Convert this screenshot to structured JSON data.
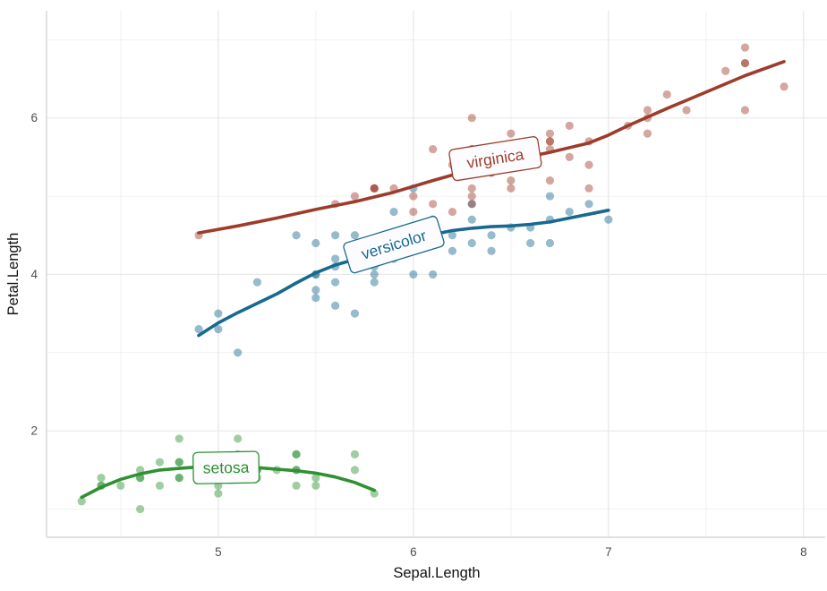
{
  "chart_data": {
    "type": "scatter",
    "title": "",
    "xlabel": "Sepal.Length",
    "ylabel": "Petal.Length",
    "x_ticks": [
      5,
      6,
      7,
      8
    ],
    "y_ticks": [
      2,
      4,
      6
    ],
    "x_minor": [
      4.5,
      5.5,
      6.5,
      7.5
    ],
    "y_minor": [
      1,
      3,
      5,
      7
    ],
    "xlim": [
      4.12,
      8.12
    ],
    "ylim": [
      0.64,
      7.37
    ],
    "grid": "on",
    "legend_position": "labels-on-curves",
    "style": {
      "grid_major_color": "#e7e7e7",
      "grid_minor_color": "#f1f1f1",
      "axis_line_color": "#d6d6d6",
      "tick_label_color": "#4d4d4d",
      "axis_title_color": "#111111",
      "label_box_fill": "#fcfcfe",
      "point_alpha": 0.45,
      "point_radius": 4.6,
      "line_width": 3.6
    },
    "series": [
      {
        "name": "setosa",
        "color": "#2e9132",
        "label": {
          "text": "setosa",
          "x": 5.04,
          "y": 1.53,
          "angle": -1
        },
        "smooth": [
          [
            4.3,
            1.15
          ],
          [
            4.4,
            1.28
          ],
          [
            4.5,
            1.38
          ],
          [
            4.6,
            1.45
          ],
          [
            4.7,
            1.5
          ],
          [
            4.8,
            1.52
          ],
          [
            4.9,
            1.54
          ],
          [
            5.0,
            1.545
          ],
          [
            5.1,
            1.54
          ],
          [
            5.2,
            1.53
          ],
          [
            5.3,
            1.51
          ],
          [
            5.4,
            1.49
          ],
          [
            5.5,
            1.46
          ],
          [
            5.6,
            1.41
          ],
          [
            5.7,
            1.34
          ],
          [
            5.8,
            1.24
          ]
        ],
        "points": [
          [
            5.1,
            1.4
          ],
          [
            4.9,
            1.4
          ],
          [
            4.7,
            1.3
          ],
          [
            4.6,
            1.5
          ],
          [
            5.0,
            1.4
          ],
          [
            5.4,
            1.7
          ],
          [
            4.6,
            1.4
          ],
          [
            5.0,
            1.5
          ],
          [
            4.4,
            1.4
          ],
          [
            4.9,
            1.5
          ],
          [
            5.4,
            1.5
          ],
          [
            4.8,
            1.6
          ],
          [
            4.8,
            1.4
          ],
          [
            4.3,
            1.1
          ],
          [
            5.8,
            1.2
          ],
          [
            5.7,
            1.5
          ],
          [
            5.4,
            1.3
          ],
          [
            5.1,
            1.4
          ],
          [
            5.7,
            1.7
          ],
          [
            5.1,
            1.5
          ],
          [
            5.4,
            1.7
          ],
          [
            5.1,
            1.5
          ],
          [
            4.6,
            1.0
          ],
          [
            5.1,
            1.7
          ],
          [
            4.8,
            1.9
          ],
          [
            5.0,
            1.6
          ],
          [
            5.0,
            1.6
          ],
          [
            5.2,
            1.5
          ],
          [
            5.2,
            1.4
          ],
          [
            4.7,
            1.6
          ],
          [
            4.8,
            1.6
          ],
          [
            5.4,
            1.5
          ],
          [
            5.2,
            1.5
          ],
          [
            5.5,
            1.4
          ],
          [
            4.9,
            1.5
          ],
          [
            5.0,
            1.2
          ],
          [
            5.5,
            1.3
          ],
          [
            4.9,
            1.4
          ],
          [
            4.4,
            1.3
          ],
          [
            5.1,
            1.5
          ],
          [
            5.0,
            1.3
          ],
          [
            4.5,
            1.3
          ],
          [
            4.4,
            1.3
          ],
          [
            5.0,
            1.6
          ],
          [
            5.1,
            1.9
          ],
          [
            4.8,
            1.4
          ],
          [
            5.1,
            1.6
          ],
          [
            4.6,
            1.4
          ],
          [
            5.3,
            1.5
          ],
          [
            5.0,
            1.4
          ]
        ]
      },
      {
        "name": "versicolor",
        "color": "#17698f",
        "label": {
          "text": "versicolor",
          "x": 5.9,
          "y": 4.38,
          "angle": -17
        },
        "smooth": [
          [
            4.9,
            3.22
          ],
          [
            5.0,
            3.38
          ],
          [
            5.1,
            3.51
          ],
          [
            5.2,
            3.63
          ],
          [
            5.3,
            3.75
          ],
          [
            5.4,
            3.89
          ],
          [
            5.5,
            4.02
          ],
          [
            5.6,
            4.12
          ],
          [
            5.7,
            4.19
          ],
          [
            5.8,
            4.26
          ],
          [
            5.9,
            4.34
          ],
          [
            6.0,
            4.43
          ],
          [
            6.1,
            4.51
          ],
          [
            6.2,
            4.56
          ],
          [
            6.3,
            4.59
          ],
          [
            6.4,
            4.61
          ],
          [
            6.5,
            4.62
          ],
          [
            6.6,
            4.64
          ],
          [
            6.7,
            4.67
          ],
          [
            6.8,
            4.72
          ],
          [
            6.9,
            4.77
          ],
          [
            7.0,
            4.82
          ]
        ],
        "points": [
          [
            7.0,
            4.7
          ],
          [
            6.4,
            4.5
          ],
          [
            6.9,
            4.9
          ],
          [
            5.5,
            4.0
          ],
          [
            6.5,
            4.6
          ],
          [
            5.7,
            4.5
          ],
          [
            6.3,
            4.7
          ],
          [
            4.9,
            3.3
          ],
          [
            6.6,
            4.6
          ],
          [
            5.2,
            3.9
          ],
          [
            5.0,
            3.5
          ],
          [
            5.9,
            4.2
          ],
          [
            6.0,
            4.0
          ],
          [
            6.1,
            4.7
          ],
          [
            5.6,
            3.6
          ],
          [
            6.7,
            4.4
          ],
          [
            5.6,
            4.5
          ],
          [
            5.8,
            4.1
          ],
          [
            6.2,
            4.5
          ],
          [
            5.6,
            3.9
          ],
          [
            5.9,
            4.8
          ],
          [
            6.1,
            4.0
          ],
          [
            6.3,
            4.9
          ],
          [
            6.1,
            4.7
          ],
          [
            6.4,
            4.3
          ],
          [
            6.6,
            4.4
          ],
          [
            6.8,
            4.8
          ],
          [
            6.7,
            5.0
          ],
          [
            6.0,
            4.5
          ],
          [
            5.7,
            3.5
          ],
          [
            5.5,
            3.8
          ],
          [
            5.5,
            3.7
          ],
          [
            5.8,
            3.9
          ],
          [
            6.0,
            5.1
          ],
          [
            5.4,
            4.5
          ],
          [
            6.0,
            4.5
          ],
          [
            6.7,
            4.7
          ],
          [
            6.3,
            4.4
          ],
          [
            5.6,
            4.1
          ],
          [
            5.5,
            4.0
          ],
          [
            5.5,
            4.4
          ],
          [
            6.1,
            4.6
          ],
          [
            5.8,
            4.0
          ],
          [
            5.0,
            3.3
          ],
          [
            5.6,
            4.2
          ],
          [
            5.7,
            4.2
          ],
          [
            5.7,
            4.2
          ],
          [
            6.2,
            4.3
          ],
          [
            5.1,
            3.0
          ],
          [
            5.7,
            4.1
          ]
        ]
      },
      {
        "name": "virginica",
        "color": "#9d3c2b",
        "label": {
          "text": "virginica",
          "x": 6.42,
          "y": 5.48,
          "angle": -9
        },
        "smooth": [
          [
            4.9,
            4.53
          ],
          [
            5.1,
            4.62
          ],
          [
            5.3,
            4.72
          ],
          [
            5.5,
            4.83
          ],
          [
            5.7,
            4.93
          ],
          [
            5.9,
            5.05
          ],
          [
            6.1,
            5.2
          ],
          [
            6.3,
            5.34
          ],
          [
            6.5,
            5.46
          ],
          [
            6.7,
            5.56
          ],
          [
            6.9,
            5.68
          ],
          [
            7.0,
            5.78
          ],
          [
            7.1,
            5.9
          ],
          [
            7.3,
            6.12
          ],
          [
            7.5,
            6.33
          ],
          [
            7.7,
            6.54
          ],
          [
            7.9,
            6.72
          ]
        ],
        "points": [
          [
            6.3,
            6.0
          ],
          [
            5.8,
            5.1
          ],
          [
            7.1,
            5.9
          ],
          [
            6.3,
            5.6
          ],
          [
            6.5,
            5.8
          ],
          [
            7.6,
            6.6
          ],
          [
            4.9,
            4.5
          ],
          [
            7.3,
            6.3
          ],
          [
            6.7,
            5.8
          ],
          [
            7.2,
            6.1
          ],
          [
            6.5,
            5.1
          ],
          [
            6.4,
            5.3
          ],
          [
            6.8,
            5.5
          ],
          [
            5.7,
            5.0
          ],
          [
            5.8,
            5.1
          ],
          [
            6.4,
            5.3
          ],
          [
            6.5,
            5.5
          ],
          [
            7.7,
            6.7
          ],
          [
            7.7,
            6.9
          ],
          [
            6.0,
            5.0
          ],
          [
            6.9,
            5.7
          ],
          [
            5.6,
            4.9
          ],
          [
            7.7,
            6.7
          ],
          [
            6.3,
            4.9
          ],
          [
            6.7,
            5.7
          ],
          [
            7.2,
            6.0
          ],
          [
            6.2,
            4.8
          ],
          [
            6.1,
            4.9
          ],
          [
            6.4,
            5.6
          ],
          [
            7.2,
            5.8
          ],
          [
            7.4,
            6.1
          ],
          [
            7.9,
            6.4
          ],
          [
            6.4,
            5.6
          ],
          [
            6.3,
            5.1
          ],
          [
            6.1,
            5.6
          ],
          [
            7.7,
            6.1
          ],
          [
            6.3,
            5.6
          ],
          [
            6.4,
            5.5
          ],
          [
            6.0,
            4.8
          ],
          [
            6.9,
            5.4
          ],
          [
            6.7,
            5.6
          ],
          [
            6.9,
            5.1
          ],
          [
            5.8,
            5.1
          ],
          [
            6.8,
            5.9
          ],
          [
            6.7,
            5.7
          ],
          [
            6.7,
            5.2
          ],
          [
            6.3,
            5.0
          ],
          [
            6.5,
            5.2
          ],
          [
            6.2,
            5.4
          ],
          [
            5.9,
            5.1
          ]
        ]
      }
    ]
  }
}
